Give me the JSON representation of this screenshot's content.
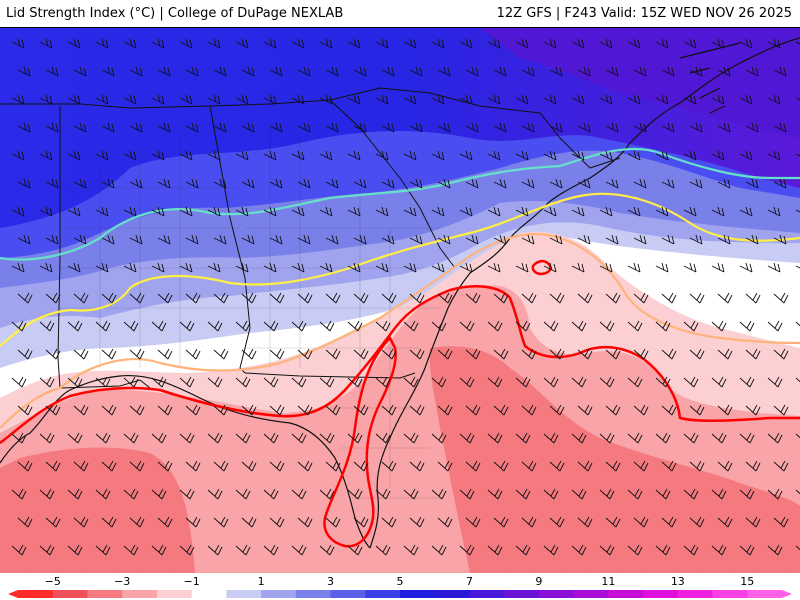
{
  "header": {
    "title": "Lid Strength Index (°C) | College of DuPage NEXLAB",
    "run_info": "12Z GFS | F243 Valid: 15Z WED NOV 26 2025"
  },
  "map": {
    "region": "Southeastern United States",
    "contour_colors": {
      "zero_line": "#ff0000",
      "minus_one_line": "#ffb27a",
      "plus_three_line": "#ffee44",
      "plus_five_line": "#66e0c8"
    }
  },
  "colorbar": {
    "tick_labels": [
      "−5",
      "−3",
      "−1",
      "1",
      "3",
      "5",
      "7",
      "9",
      "11",
      "13",
      "15"
    ],
    "min": -6,
    "max": 16,
    "colors": [
      "#ff2a2a",
      "#f0505a",
      "#f47a80",
      "#f8a4a8",
      "#fcd0d2",
      "#ffffff",
      "#c8ccf4",
      "#a0a4ee",
      "#7a80ea",
      "#5a60ea",
      "#3a40e6",
      "#2020e0",
      "#2a1ad8",
      "#4a18d8",
      "#6a14d8",
      "#8a10d8",
      "#aa0cd8",
      "#c80cd8",
      "#e010dc",
      "#f020e0",
      "#f840e4",
      "#ff60e8"
    ]
  }
}
